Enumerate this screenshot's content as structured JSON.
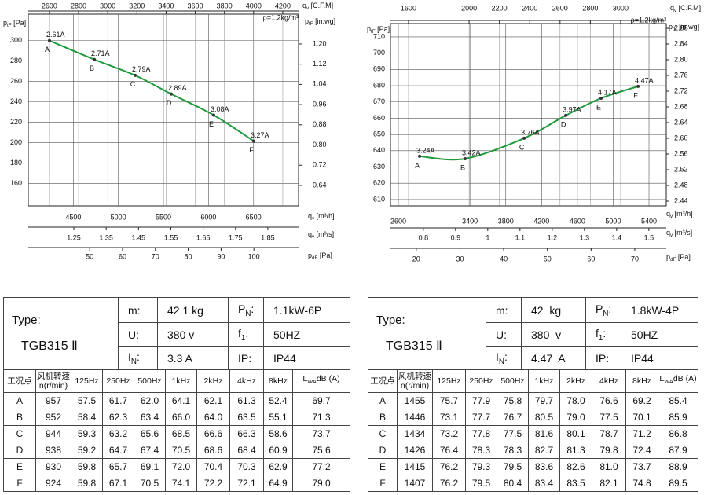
{
  "chart_data": [
    {
      "type": "line",
      "note": "ρ=1.2kg/m³",
      "color": "#1f9a3c",
      "grid": true,
      "top_axis": {
        "label": {
          "main": "q",
          "sub": "v",
          "tail": " [C.F.M]"
        },
        "lim": [
          2455,
          4308
        ],
        "ticks": [
          2600,
          2800,
          3000,
          3200,
          3400,
          3600,
          3800,
          4000,
          4200
        ]
      },
      "y_label": {
        "main": "p",
        "sub": "tF",
        "tail": " [Pa]"
      },
      "ylim": [
        138,
        326
      ],
      "yticks": [
        160,
        180,
        200,
        220,
        240,
        260,
        280,
        300
      ],
      "y2_label": {
        "main": "p",
        "sub": "tF",
        "tail": " [in.wg]"
      },
      "y2lim": [
        0.559,
        1.318
      ],
      "y2ticks": [
        0.64,
        0.72,
        {
          "value": 0.8,
          "label": "0.80"
        },
        0.88,
        0.96,
        1.04,
        1.12,
        {
          "value": 1.2,
          "label": "1.20"
        }
      ],
      "x_label": {
        "main": "q",
        "sub": "v",
        "tail": " [m³/h]"
      },
      "xlim": [
        4000,
        7000
      ],
      "xticks": [
        4500,
        5000,
        5500,
        6000,
        6500
      ],
      "bottom_axes": [
        {
          "label": {
            "main": "q",
            "sub": "v",
            "tail": " [m³/s]"
          },
          "lim": [
            1.109,
            1.945
          ],
          "ticks": [
            1.25,
            1.35,
            1.45,
            1.55,
            1.65,
            1.75,
            1.85
          ]
        },
        {
          "label": {
            "main": "p",
            "sub": "dF",
            "tail": " [Pa]"
          },
          "lim": [
            31.3,
            113.6
          ],
          "ticks": [
            50,
            60,
            70,
            80,
            90,
            100
          ]
        }
      ],
      "x": [
        4235,
        4733,
        5186,
        5587,
        6058,
        6503
      ],
      "values": [
        300,
        281.5,
        266,
        247.7,
        227,
        201.5
      ],
      "point_labels": [
        "A",
        "B",
        "C",
        "D",
        "E",
        "F"
      ],
      "current_labels": [
        "2.61A",
        "2.71A",
        "2.79A",
        "2.89A",
        "3.08A",
        "3.27A"
      ]
    },
    {
      "type": "line",
      "note": "ρ=1.2kg/m³",
      "color": "#1f9a3c",
      "grid": true,
      "top_axis": {
        "label": {
          "main": "q",
          "sub": "v",
          "tail": " [C.F.M]"
        },
        "lim": [
          1481,
          3301
        ],
        "ticks": [
          1600,
          2000,
          2200,
          2400,
          2600,
          2800,
          3000
        ]
      },
      "y_label": {
        "main": "p",
        "sub": "tF",
        "tail": " [Pa]"
      },
      "ylim": [
        606.1,
        718.2
      ],
      "yticks": [
        610,
        620,
        630,
        640,
        650,
        660,
        670,
        680,
        690,
        700,
        710
      ],
      "y2_label": {
        "main": "p",
        "sub": "tF",
        "tail": " [in.wg]"
      },
      "y2lim": [
        2.428,
        2.892
      ],
      "y2ticks": [
        2.44,
        2.48,
        2.52,
        2.56,
        {
          "value": 2.6,
          "label": "2.60"
        },
        2.64,
        2.68,
        2.72,
        2.76,
        {
          "value": 2.8,
          "label": "2.80"
        },
        2.84,
        2.88
      ],
      "x_label": {
        "main": "q",
        "sub": "v",
        "tail": " [m³/h]"
      },
      "xlim": [
        2512,
        5593
      ],
      "xticks": [
        2600,
        3400,
        3800,
        4200,
        4600,
        5000,
        5400
      ],
      "bottom_axes": [
        {
          "label": {
            "main": "q",
            "sub": "v",
            "tail": " [m³/s]"
          },
          "lim": [
            0.698,
            1.554
          ],
          "ticks": [
            0.8,
            0.9,
            1,
            1.1,
            1.2,
            1.3,
            1.4,
            1.5
          ]
        },
        {
          "label": {
            "main": "p",
            "sub": "dF",
            "tail": " [Pa]"
          },
          "lim": [
            14.1,
            77.2
          ],
          "ticks": [
            20,
            30,
            40,
            50,
            60,
            70
          ]
        }
      ],
      "x": [
        2837,
        3346,
        4005,
        4470,
        4865,
        5278
      ],
      "values": [
        636.6,
        635.1,
        647.7,
        661.7,
        672.3,
        679.6
      ],
      "point_labels": [
        "A",
        "B",
        "C",
        "D",
        "E",
        "F"
      ],
      "current_labels": [
        "3.24A",
        "3.42A",
        "3.76A",
        "3.97A",
        "4.17A",
        "4.47A"
      ]
    }
  ],
  "tables": [
    {
      "type_label": "Type:",
      "model": "TGB315 Ⅱ",
      "specs": [
        [
          "m:",
          "42.1 kg",
          {
            "main": "P",
            "sub": "N",
            "tail": ":"
          },
          "1.1kW-6P"
        ],
        [
          "U:",
          "380 v",
          {
            "main": "f",
            "sub": "1",
            "tail": ":"
          },
          "50HZ"
        ],
        [
          {
            "main": "I",
            "sub": "N",
            "tail": ":"
          },
          "3.3 A",
          "IP:",
          "IP44"
        ]
      ],
      "header": [
        "工况点",
        [
          "风机转速",
          "n(r/min)"
        ],
        "125Hz",
        "250Hz",
        "500Hz",
        "1kHz",
        "2kHz",
        "4kHz",
        "8kHz",
        {
          "main": "L",
          "sub": "WA",
          "tail": "dB (A)"
        }
      ],
      "rows": [
        [
          "A",
          "957",
          "57.5",
          "61.7",
          "62.0",
          "64.1",
          "62.1",
          "61.3",
          "52.4",
          "69.7"
        ],
        [
          "B",
          "952",
          "58.4",
          "62.3",
          "63.4",
          "66.0",
          "64.0",
          "63.5",
          "55.1",
          "71.3"
        ],
        [
          "C",
          "944",
          "59.3",
          "63.2",
          "65.6",
          "68.5",
          "66.6",
          "66.3",
          "58.6",
          "73.7"
        ],
        [
          "D",
          "938",
          "59.2",
          "64.7",
          "67.4",
          "70.5",
          "68.6",
          "68.4",
          "60.9",
          "75.6"
        ],
        [
          "E",
          "930",
          "59.8",
          "65.7",
          "69.1",
          "72.0",
          "70.4",
          "70.3",
          "62.9",
          "77.2"
        ],
        [
          "F",
          "924",
          "59.8",
          "67.1",
          "70.5",
          "74.1",
          "72.2",
          "72.1",
          "64.9",
          "79.0"
        ]
      ]
    },
    {
      "type_label": "Type:",
      "model": "TGB315 Ⅱ",
      "specs": [
        [
          "m:",
          "42  kg",
          {
            "main": "P",
            "sub": "N",
            "tail": ":"
          },
          "1.8kW-4P"
        ],
        [
          "U:",
          "380  v",
          {
            "main": "f",
            "sub": "1",
            "tail": ":"
          },
          "50HZ"
        ],
        [
          {
            "main": "I",
            "sub": "N",
            "tail": ":"
          },
          "4.47  A",
          "IP:",
          "IP44"
        ]
      ],
      "header": [
        "工况点",
        [
          "风机转速",
          "n(r/min)"
        ],
        "125Hz",
        "250Hz",
        "500Hz",
        "1kHz",
        "2kHz",
        "4kHz",
        "8kHz",
        {
          "main": "L",
          "sub": "WA",
          "tail": "dB (A)"
        }
      ],
      "rows": [
        [
          "A",
          "1455",
          "75.7",
          "77.9",
          "75.8",
          "79.7",
          "78.0",
          "76.6",
          "69.2",
          "85.4"
        ],
        [
          "B",
          "1446",
          "73.1",
          "77.7",
          "76.7",
          "80.5",
          "79.0",
          "77.5",
          "70.1",
          "85.9"
        ],
        [
          "C",
          "1434",
          "73.2",
          "77.8",
          "77.5",
          "81.6",
          "80.1",
          "78.7",
          "71.2",
          "86.8"
        ],
        [
          "D",
          "1426",
          "76.4",
          "78.3",
          "78.3",
          "82.7",
          "81.3",
          "79.8",
          "72.4",
          "87.9"
        ],
        [
          "E",
          "1415",
          "76.2",
          "79.3",
          "79.5",
          "83.6",
          "82.6",
          "81.0",
          "73.7",
          "88.9"
        ],
        [
          "F",
          "1407",
          "76.2",
          "79.5",
          "80.4",
          "83.4",
          "83.5",
          "82.1",
          "74.8",
          "89.5"
        ]
      ]
    }
  ]
}
